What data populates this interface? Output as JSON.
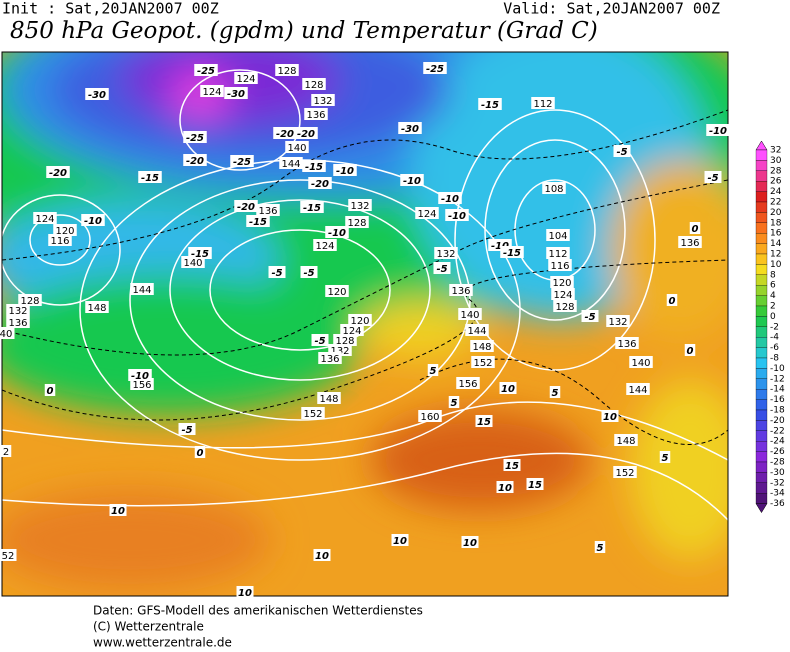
{
  "header": {
    "init": "Init : Sat,20JAN2007 00Z",
    "valid": "Valid: Sat,20JAN2007 00Z",
    "title": "850 hPa Geopot. (gpdm) und Temperatur (Grad C)"
  },
  "map": {
    "geopotential_labels": [
      124,
      124,
      128,
      128,
      132,
      136,
      140,
      144,
      136,
      132,
      128,
      124,
      120,
      116,
      124,
      140,
      144,
      148,
      128,
      132,
      136,
      120,
      120,
      124,
      128,
      132,
      136,
      148,
      152,
      156,
      160,
      124,
      132,
      136,
      140,
      144,
      148,
      152,
      156,
      112,
      108,
      104,
      112,
      116,
      120,
      124,
      128,
      132,
      136,
      140,
      144,
      148,
      152,
      52,
      136,
      40,
      2
    ],
    "temperature_labels": [
      -25,
      -25,
      -30,
      -30,
      -25,
      -20,
      -25,
      -30,
      -15,
      -10,
      -5,
      -5,
      -20,
      -15,
      -20,
      -20,
      -15,
      -20,
      -10,
      -10,
      -15,
      -20,
      -15,
      -10,
      -10,
      -10,
      -15,
      -10,
      -5,
      -5,
      -10,
      -15,
      -5,
      -5,
      0,
      0,
      0,
      -5,
      -10,
      -5,
      0,
      0,
      5,
      5,
      10,
      5,
      10,
      15,
      15,
      15,
      10,
      10,
      10,
      10,
      10,
      5,
      5,
      10
    ]
  },
  "colorbar": {
    "labels": [
      32,
      30,
      28,
      26,
      24,
      22,
      20,
      18,
      16,
      14,
      12,
      10,
      8,
      6,
      4,
      2,
      0,
      -2,
      -4,
      -6,
      -8,
      -10,
      -12,
      -14,
      -16,
      -18,
      -20,
      -22,
      -24,
      -26,
      -28,
      -30,
      -32,
      -34,
      -36
    ]
  },
  "footer": {
    "lines": [
      "Daten: GFS-Modell des amerikanischen Wetterdienstes",
      "(C) Wetterzentrale",
      "www.wetterzentrale.de"
    ]
  }
}
